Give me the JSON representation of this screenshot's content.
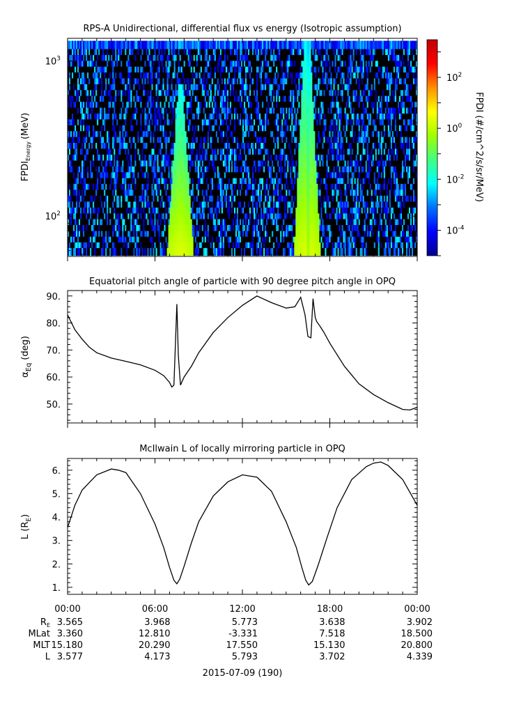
{
  "chart_data": [
    {
      "type": "heatmap",
      "title": "RPS-A Unidirectional, differential flux vs energy (Isotropic assumption)",
      "ylabel_main": "FPDI",
      "ylabel_sub": "Energy",
      "ylabel_unit": "(MeV)",
      "yscale": "log",
      "ylim": [
        55,
        1400
      ],
      "yticks": [
        {
          "value": 100,
          "base": "10",
          "exp": "2"
        },
        {
          "value": 1000,
          "base": "10",
          "exp": "3"
        }
      ],
      "xlim": [
        0,
        24
      ],
      "energy_rows": [
        60,
        65,
        71,
        77,
        84,
        92,
        100,
        109,
        119,
        130,
        142,
        155,
        169,
        184,
        201,
        219,
        239,
        261,
        285,
        311,
        339,
        370,
        404,
        440,
        480,
        524,
        572,
        624,
        680,
        742,
        810,
        883,
        963,
        1050,
        1146,
        1250
      ],
      "intensity_bands": [
        {
          "center_hr": 7.75,
          "half_width_low_hr": 0.9,
          "half_width_high_hr": 0.15,
          "top_energy": 700
        },
        {
          "center_hr": 16.45,
          "half_width_low_hr": 0.9,
          "half_width_high_hr": 0.2,
          "top_energy": 1350
        }
      ],
      "colorbar": {
        "label": "FPDI (#/cm^2/s/sr/MeV)",
        "scale": "log",
        "range": [
          1e-05,
          3000
        ],
        "ticks": [
          {
            "value": 0.0001,
            "base": "10",
            "exp": "-4"
          },
          {
            "value": 0.01,
            "base": "10",
            "exp": "-2"
          },
          {
            "value": 1,
            "base": "10",
            "exp": "0"
          },
          {
            "value": 100,
            "base": "10",
            "exp": "2"
          }
        ],
        "colors": [
          "#00008f",
          "#0000ff",
          "#0070ff",
          "#00ffff",
          "#40ff80",
          "#a0ff00",
          "#ffff00",
          "#ff9000",
          "#ff0000",
          "#c00000"
        ]
      }
    },
    {
      "type": "line",
      "title": "Equatorial pitch angle of particle with 90 degree pitch angle in OPQ",
      "ylabel_main": "α",
      "ylabel_sub": "Eq",
      "ylabel_unit": "(deg)",
      "ylim": [
        43,
        92
      ],
      "yticks": [
        50.0,
        60.0,
        70.0,
        80.0,
        90.0
      ],
      "ytick_labels": [
        "50.",
        "60.",
        "70.",
        "80.",
        "90."
      ],
      "xlim": [
        0,
        24
      ],
      "x": [
        0,
        0.5,
        1,
        1.5,
        2,
        3,
        4,
        5,
        6,
        6.6,
        7.0,
        7.15,
        7.3,
        7.4,
        7.5,
        7.6,
        7.75,
        8.0,
        8.5,
        9,
        10,
        11,
        12,
        13.0,
        14,
        15,
        15.6,
        16.0,
        16.3,
        16.5,
        16.7,
        16.85,
        17.0,
        17.1,
        17.3,
        17.6,
        18,
        19,
        20,
        21,
        22,
        23,
        23.5,
        24
      ],
      "y": [
        83,
        77.5,
        74,
        71,
        69,
        67,
        65.8,
        64.5,
        62.5,
        60.5,
        58.0,
        56.3,
        57,
        72,
        87,
        68,
        57,
        60,
        64,
        69,
        76.5,
        82,
        86.5,
        90,
        87.5,
        85.5,
        86,
        89.5,
        83,
        75,
        74.5,
        89,
        82,
        80.5,
        79,
        76.5,
        72.5,
        64,
        57.5,
        53.5,
        50.5,
        48,
        47.8,
        48.8
      ]
    },
    {
      "type": "line",
      "title": "McIlwain L of locally mirroring particle in OPQ",
      "ylabel_main": "L (R",
      "ylabel_sub": "E",
      "ylabel_unit": ")",
      "ylim": [
        0.7,
        6.5
      ],
      "yticks": [
        1.0,
        2.0,
        3.0,
        4.0,
        5.0,
        6.0
      ],
      "ytick_labels": [
        "1.",
        "2.",
        "3.",
        "4.",
        "5.",
        "6."
      ],
      "xlim": [
        0,
        24
      ],
      "x": [
        0,
        0.5,
        1,
        2,
        3,
        3.5,
        4,
        5,
        6,
        6.6,
        7.0,
        7.3,
        7.5,
        7.7,
        8.0,
        8.5,
        9,
        10,
        11,
        12,
        13,
        14,
        15,
        15.7,
        16.1,
        16.35,
        16.55,
        16.8,
        17.2,
        17.8,
        18.5,
        19.5,
        20.5,
        21,
        21.5,
        22,
        23,
        24
      ],
      "y": [
        3.55,
        4.5,
        5.15,
        5.8,
        6.05,
        6.0,
        5.9,
        5.0,
        3.7,
        2.7,
        1.85,
        1.3,
        1.15,
        1.35,
        1.9,
        2.9,
        3.8,
        4.9,
        5.5,
        5.8,
        5.7,
        5.1,
        3.8,
        2.7,
        1.8,
        1.3,
        1.1,
        1.25,
        1.95,
        3.1,
        4.4,
        5.6,
        6.15,
        6.3,
        6.35,
        6.2,
        5.6,
        4.5
      ]
    }
  ],
  "time_axis": {
    "tick_labels": [
      "00:00",
      "06:00",
      "12:00",
      "18:00",
      "00:00"
    ],
    "rows": [
      {
        "label_main": "R",
        "label_sub": "E",
        "values": [
          "3.565",
          "3.968",
          "5.773",
          "3.638",
          "3.902"
        ]
      },
      {
        "label_main": "MLat",
        "label_sub": "",
        "values": [
          "3.360",
          "12.810",
          "-3.331",
          "7.518",
          "18.500"
        ]
      },
      {
        "label_main": "MLT",
        "label_sub": "",
        "values": [
          "15.180",
          "20.290",
          "17.550",
          "15.130",
          "20.800"
        ]
      },
      {
        "label_main": "L",
        "label_sub": "",
        "values": [
          "3.577",
          "4.173",
          "5.793",
          "3.702",
          "4.339"
        ]
      }
    ],
    "date_label": "2015-07-09 (190)"
  }
}
